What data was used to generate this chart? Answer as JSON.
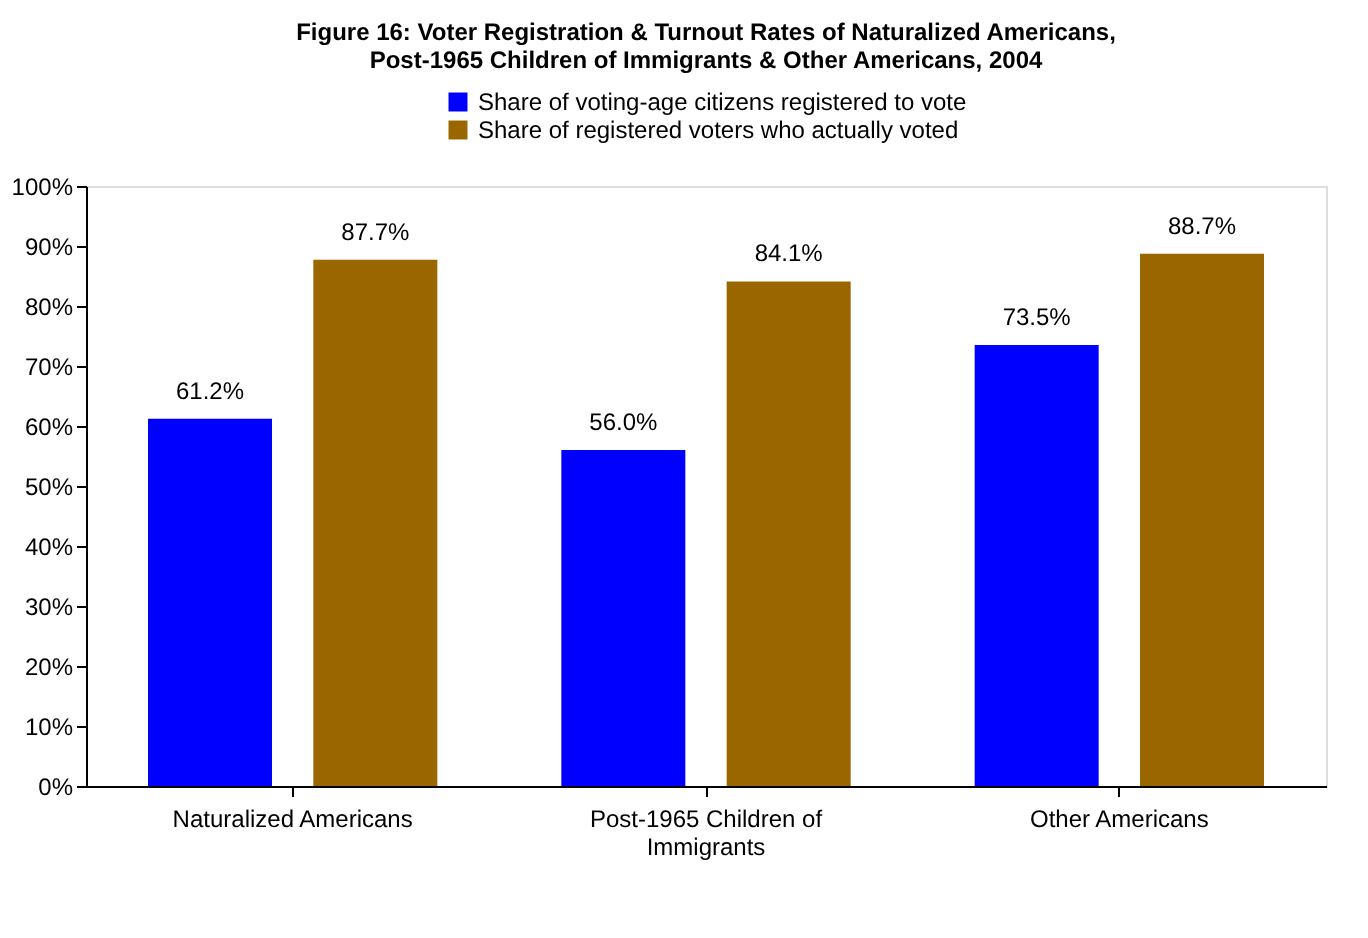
{
  "chart_data": {
    "type": "bar",
    "title": "Figure 16: Voter Registration & Turnout Rates of Naturalized Americans, Post-1965 Children of Immigrants & Other Americans, 2004",
    "categories": [
      "Naturalized Americans",
      "Post-1965 Children of Immigrants",
      "Other Americans"
    ],
    "series": [
      {
        "name": "Share of voting-age citizens registered to vote",
        "color": "#0000ff",
        "values": [
          61.2,
          56.0,
          73.5
        ],
        "value_labels": [
          "61.2%",
          "56.0%",
          "73.5%"
        ]
      },
      {
        "name": "Share of registered voters who actually voted",
        "color": "#996600",
        "values": [
          87.7,
          84.1,
          88.7
        ],
        "value_labels": [
          "87.7%",
          "84.1%",
          "88.7%"
        ]
      }
    ],
    "ylim": [
      0,
      100
    ],
    "yticks": [
      {
        "value": 0,
        "label": "0%"
      },
      {
        "value": 10,
        "label": "10%"
      },
      {
        "value": 20,
        "label": "20%"
      },
      {
        "value": 30,
        "label": "30%"
      },
      {
        "value": 40,
        "label": "40%"
      },
      {
        "value": 50,
        "label": "50%"
      },
      {
        "value": 60,
        "label": "60%"
      },
      {
        "value": 70,
        "label": "70%"
      },
      {
        "value": 80,
        "label": "80%"
      },
      {
        "value": 90,
        "label": "90%"
      },
      {
        "value": 100,
        "label": "100%"
      }
    ],
    "grid": false,
    "legend": "top"
  }
}
